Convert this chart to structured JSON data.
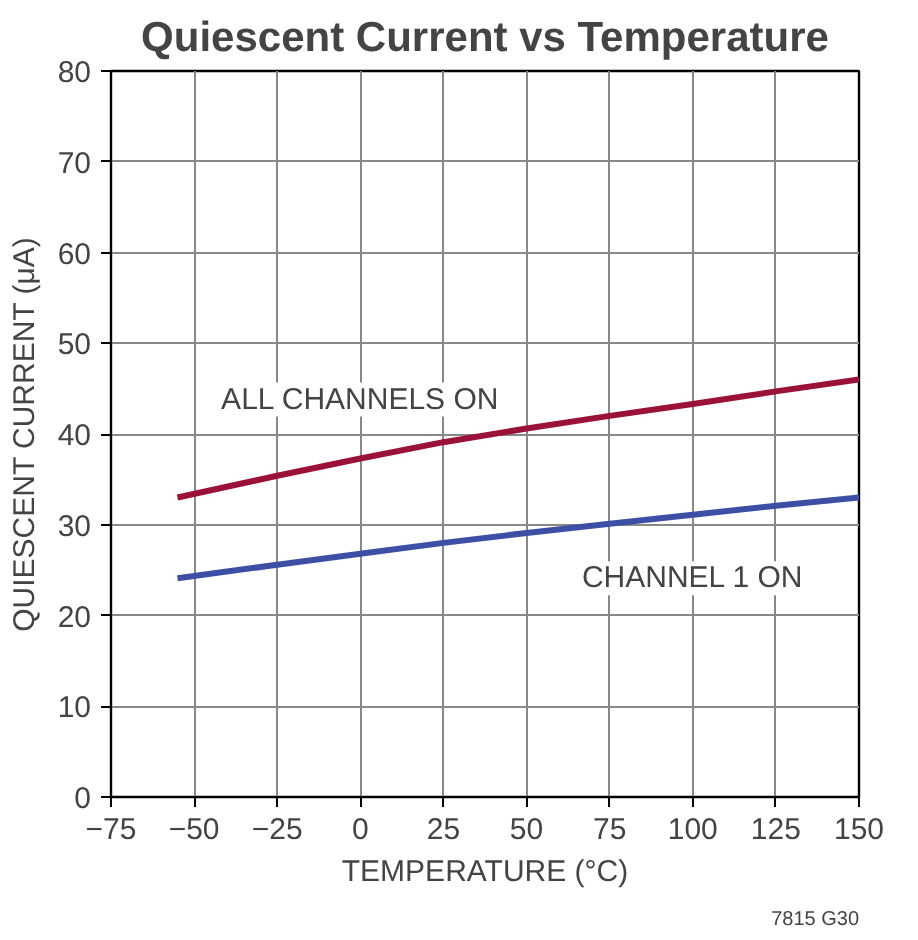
{
  "chart_data": {
    "type": "line",
    "title": "Quiescent Current vs Temperature",
    "xlabel": "TEMPERATURE (°C)",
    "ylabel": "QUIESCENT CURRENT (μA)",
    "xlim": [
      -75,
      150
    ],
    "xticks": [
      -75,
      -50,
      -25,
      0,
      25,
      50,
      75,
      100,
      125,
      150
    ],
    "ylim": [
      0,
      80
    ],
    "yticks": [
      0,
      10,
      20,
      30,
      40,
      50,
      60,
      70,
      80
    ],
    "grid": true,
    "line_style": "solid",
    "series": [
      {
        "name": "ALL CHANNELS ON",
        "color": "#9b1238",
        "x": [
          -55,
          -25,
          0,
          25,
          50,
          75,
          100,
          125,
          150
        ],
        "values": [
          33,
          35.4,
          37.3,
          39.1,
          40.6,
          42,
          43.3,
          44.7,
          46
        ]
      },
      {
        "name": "CHANNEL 1 ON",
        "color": "#3c4fa5",
        "x": [
          -55,
          -25,
          0,
          25,
          50,
          75,
          100,
          125,
          150
        ],
        "values": [
          24.1,
          25.6,
          26.8,
          28,
          29.1,
          30.1,
          31.1,
          32.1,
          33
        ]
      }
    ],
    "annotations": [
      "7815 G30"
    ]
  }
}
